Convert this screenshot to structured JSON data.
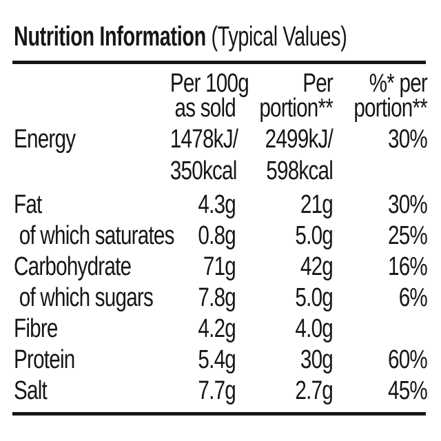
{
  "colors": {
    "text": "#161616",
    "background": "#ffffff"
  },
  "title": {
    "main": "Nutrition Information",
    "suffix": " (Typical Values)"
  },
  "header": {
    "col1_line1": "Per 100g",
    "col1_line2": "as sold",
    "col2_line1": "Per",
    "col2_line2": "portion**",
    "col3_line1": "%* per",
    "col3_line2": "portion**"
  },
  "rows": [
    {
      "label": "Energy",
      "per100_l1": "1478kJ/",
      "per100_l2": "350kcal",
      "portion_l1": "2499kJ/",
      "portion_l2": "598kcal",
      "percent": "30%"
    },
    {
      "label": "Fat",
      "per100": "4.3g",
      "portion": "21g",
      "percent": "30%"
    },
    {
      "label": "of which saturates",
      "per100": "0.8g",
      "portion": "5.0g",
      "percent": "25%"
    },
    {
      "label": "Carbohydrate",
      "per100": "71g",
      "portion": "42g",
      "percent": "16%"
    },
    {
      "label": "of which sugars",
      "per100": "7.8g",
      "portion": "5.0g",
      "percent": "6%"
    },
    {
      "label": "Fibre",
      "per100": "4.2g",
      "portion": "4.0g",
      "percent": ""
    },
    {
      "label": "Protein",
      "per100": "5.4g",
      "portion": "30g",
      "percent": "60%"
    },
    {
      "label": "Salt",
      "per100": "7.7g",
      "portion": "2.7g",
      "percent": "45%"
    }
  ]
}
